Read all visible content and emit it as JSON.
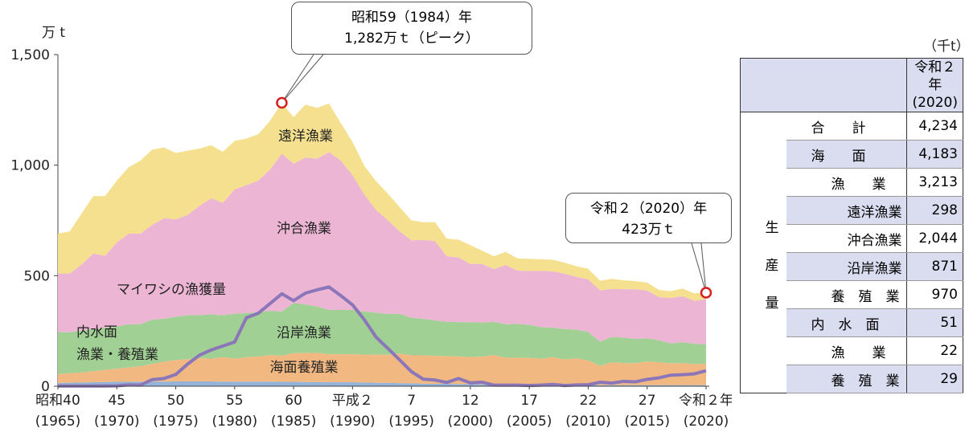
{
  "chart_data": {
    "type": "stacked-area",
    "y_unit": "万 t",
    "xlim": [
      1965,
      2020
    ],
    "ylim": [
      0,
      1500
    ],
    "yticks": [
      0,
      500,
      {
        "value": 1000,
        "label": "1,000"
      },
      {
        "value": 1500,
        "label": "1,500"
      }
    ],
    "xticks": [
      {
        "value": 1965,
        "label": "昭和40"
      },
      {
        "value": 1970,
        "label": "45"
      },
      {
        "value": 1975,
        "label": "50"
      },
      {
        "value": 1980,
        "label": "55"
      },
      {
        "value": 1985,
        "label": "60"
      },
      {
        "value": 1990,
        "label": "平成２"
      },
      {
        "value": 1995,
        "label": "7"
      },
      {
        "value": 2000,
        "label": "12"
      },
      {
        "value": 2005,
        "label": "17"
      },
      {
        "value": 2010,
        "label": "22"
      },
      {
        "value": 2015,
        "label": "27"
      },
      {
        "value": 2020,
        "label": "令和２年"
      }
    ],
    "xtick_sublabels": [
      "(1965)",
      "(1970)",
      "(1975)",
      "(1980)",
      "(1985)",
      "(1990)",
      "(1995)",
      "(2000)",
      "(2005)",
      "(2010)",
      "(2015)",
      "(2020)"
    ],
    "x": [
      1965,
      1966,
      1967,
      1968,
      1969,
      1970,
      1971,
      1972,
      1973,
      1974,
      1975,
      1976,
      1977,
      1978,
      1979,
      1980,
      1981,
      1982,
      1983,
      1984,
      1985,
      1986,
      1987,
      1988,
      1989,
      1990,
      1991,
      1992,
      1993,
      1994,
      1995,
      1996,
      1997,
      1998,
      1999,
      2000,
      2001,
      2002,
      2003,
      2004,
      2005,
      2006,
      2007,
      2008,
      2009,
      2010,
      2011,
      2012,
      2013,
      2014,
      2015,
      2016,
      2017,
      2018,
      2019,
      2020
    ],
    "series": [
      {
        "name": "内水面\n漁業・養殖業",
        "color": "#93b3d8",
        "values": [
          15,
          16,
          17,
          18,
          19,
          20,
          20,
          21,
          21,
          21,
          22,
          22,
          22,
          22,
          21,
          21,
          21,
          21,
          21,
          20,
          20,
          19,
          19,
          18,
          18,
          18,
          17,
          16,
          15,
          14,
          13,
          12,
          11,
          11,
          10,
          9,
          8,
          8,
          8,
          7,
          7,
          7,
          7,
          6,
          6,
          6,
          5,
          5,
          5,
          5,
          5,
          5,
          5,
          5,
          5,
          5.1
        ]
      },
      {
        "name": "海面養殖業",
        "color": "#f2b882",
        "values": [
          40,
          43,
          45,
          50,
          55,
          60,
          65,
          70,
          80,
          90,
          97,
          100,
          105,
          103,
          110,
          104,
          110,
          114,
          120,
          118,
          130,
          131,
          132,
          127,
          127,
          127,
          126,
          127,
          127,
          134,
          127,
          128,
          127,
          125,
          125,
          123,
          126,
          133,
          121,
          122,
          121,
          118,
          124,
          115,
          120,
          111,
          87,
          103,
          100,
          99,
          107,
          103,
          99,
          100,
          95,
          97
        ]
      },
      {
        "name": "沿岸漁業",
        "color": "#a1d095",
        "values": [
          190,
          185,
          190,
          190,
          190,
          190,
          195,
          190,
          200,
          195,
          195,
          200,
          195,
          200,
          190,
          203,
          200,
          200,
          200,
          200,
          227,
          220,
          210,
          200,
          200,
          200,
          195,
          190,
          185,
          180,
          170,
          165,
          160,
          155,
          155,
          158,
          154,
          150,
          151,
          153,
          150,
          142,
          134,
          138,
          130,
          129,
          110,
          115,
          115,
          110,
          105,
          100,
          90,
          94,
          93,
          87.1
        ]
      },
      {
        "name": "沖合漁業",
        "color": "#ebb5d3",
        "values": [
          265,
          266,
          298,
          342,
          326,
          380,
          410,
          409,
          429,
          454,
          441,
          453,
          493,
          525,
          509,
          562,
          579,
          595,
          639,
          714,
          630,
          664,
          668,
          714,
          676,
          610,
          529,
          464,
          424,
          372,
          350,
          357,
          359,
          297,
          293,
          263,
          265,
          239,
          268,
          241,
          243,
          255,
          255,
          250,
          239,
          237,
          232,
          217,
          219,
          225,
          216,
          195,
          205,
          208,
          194,
          204.4
        ]
      },
      {
        "name": "遠洋漁業",
        "color": "#f4e08e",
        "values": [
          180,
          190,
          230,
          260,
          270,
          280,
          300,
          330,
          340,
          320,
          300,
          290,
          260,
          240,
          230,
          220,
          210,
          210,
          220,
          230,
          210,
          240,
          230,
          220,
          170,
          150,
          130,
          130,
          120,
          110,
          90,
          80,
          85,
          80,
          80,
          85,
          60,
          58,
          60,
          55,
          55,
          52,
          52,
          50,
          48,
          48,
          43,
          46,
          40,
          37,
          36,
          33,
          31,
          35,
          33,
          29.8
        ]
      }
    ],
    "lines": [
      {
        "name": "マイワシの漁獲量",
        "color": "#8a76b8",
        "values": [
          1,
          1,
          1,
          1,
          1,
          2,
          6,
          5,
          30,
          35,
          53,
          100,
          140,
          164,
          182,
          200,
          310,
          330,
          374,
          418,
          387,
          421,
          436,
          449,
          410,
          368,
          301,
          222,
          171,
          119,
          66,
          32,
          28,
          17,
          35,
          15,
          18,
          5,
          5,
          5,
          3,
          5,
          8,
          3,
          6,
          7,
          18,
          14,
          22,
          20,
          31,
          38,
          50,
          52,
          56,
          70
        ]
      }
    ],
    "annotations": [
      {
        "text": "昭和59（1984）年\n1,282万ｔ（ピーク）",
        "x": 1984,
        "y": 1282
      },
      {
        "text": "令和２（2020）年\n423万ｔ",
        "x": 2020,
        "y": 423
      }
    ]
  },
  "table": {
    "unit": "（千t）",
    "header": "令和２年\n(2020)",
    "side_label": "生産量",
    "rows": [
      {
        "label": "合　　計",
        "value": "4,234"
      },
      {
        "label": "海　　面",
        "value": "4,183"
      },
      {
        "label": "漁　　業",
        "value": "3,213"
      },
      {
        "label": "遠洋漁業",
        "value": "298"
      },
      {
        "label": "沖合漁業",
        "value": "2,044"
      },
      {
        "label": "沿岸漁業",
        "value": "871"
      },
      {
        "label": "養　殖　業",
        "value": "970"
      },
      {
        "label": "内　水　面",
        "value": "51"
      },
      {
        "label": "漁　　業",
        "value": "22"
      },
      {
        "label": "養　殖　業",
        "value": "29"
      }
    ]
  }
}
